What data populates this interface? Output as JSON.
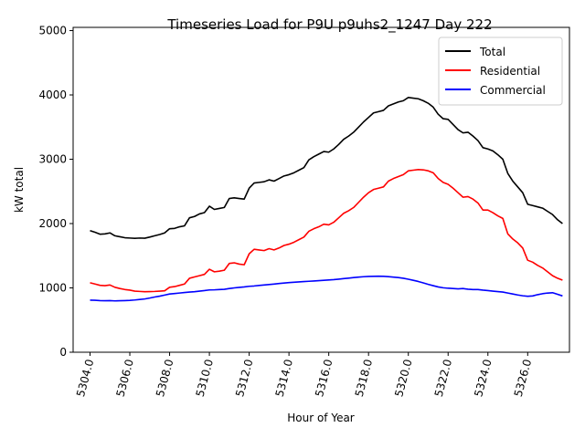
{
  "chart_data": {
    "type": "line",
    "title": "Timeseries Load for P9U p9uhs2_1247  Day 222",
    "xlabel": "Hour of Year",
    "ylabel": "kW total",
    "xlim": [
      5303.15,
      5328.1
    ],
    "ylim": [
      0,
      5050
    ],
    "xticks": [
      5304,
      5306,
      5308,
      5310,
      5312,
      5314,
      5316,
      5318,
      5320,
      5322,
      5324,
      5326
    ],
    "xtick_labels": [
      "5304.0",
      "5306.0",
      "5308.0",
      "5310.0",
      "5312.0",
      "5314.0",
      "5316.0",
      "5318.0",
      "5320.0",
      "5322.0",
      "5324.0",
      "5326.0"
    ],
    "yticks": [
      0,
      1000,
      2000,
      3000,
      4000,
      5000
    ],
    "ytick_labels": [
      "0",
      "1000",
      "2000",
      "3000",
      "4000",
      "5000"
    ],
    "legend_position": "top-right",
    "x_start": 5304.0,
    "x_step": 0.25,
    "series": [
      {
        "name": "Total",
        "color": "#000000",
        "values": [
          1890,
          1865,
          1835,
          1840,
          1855,
          1810,
          1795,
          1780,
          1775,
          1770,
          1775,
          1772,
          1790,
          1810,
          1830,
          1855,
          1920,
          1925,
          1950,
          1965,
          2090,
          2110,
          2150,
          2170,
          2270,
          2220,
          2235,
          2250,
          2390,
          2400,
          2390,
          2380,
          2550,
          2630,
          2640,
          2650,
          2680,
          2660,
          2700,
          2740,
          2760,
          2790,
          2830,
          2870,
          2990,
          3040,
          3080,
          3120,
          3110,
          3160,
          3230,
          3310,
          3360,
          3420,
          3500,
          3580,
          3650,
          3720,
          3740,
          3760,
          3830,
          3860,
          3890,
          3910,
          3960,
          3950,
          3940,
          3910,
          3870,
          3810,
          3700,
          3630,
          3620,
          3540,
          3460,
          3410,
          3420,
          3360,
          3290,
          3180,
          3160,
          3130,
          3070,
          3000,
          2780,
          2660,
          2570,
          2480,
          2300,
          2280,
          2260,
          2240,
          2190,
          2140,
          2060,
          2000
        ]
      },
      {
        "name": "Residential",
        "color": "#ff0000",
        "values": [
          1080,
          1060,
          1040,
          1035,
          1045,
          1010,
          990,
          975,
          965,
          950,
          945,
          940,
          942,
          945,
          950,
          955,
          1010,
          1020,
          1040,
          1060,
          1150,
          1170,
          1190,
          1210,
          1290,
          1250,
          1260,
          1275,
          1380,
          1390,
          1370,
          1360,
          1530,
          1600,
          1590,
          1580,
          1610,
          1590,
          1620,
          1660,
          1680,
          1710,
          1750,
          1790,
          1880,
          1920,
          1950,
          1990,
          1980,
          2020,
          2090,
          2160,
          2200,
          2250,
          2330,
          2410,
          2480,
          2530,
          2550,
          2570,
          2660,
          2700,
          2730,
          2760,
          2820,
          2830,
          2840,
          2835,
          2820,
          2790,
          2700,
          2640,
          2610,
          2550,
          2480,
          2410,
          2420,
          2380,
          2320,
          2210,
          2210,
          2170,
          2120,
          2080,
          1840,
          1760,
          1700,
          1620,
          1430,
          1400,
          1350,
          1310,
          1250,
          1190,
          1150,
          1120
        ]
      },
      {
        "name": "Commercial",
        "color": "#0000ff",
        "values": [
          810,
          808,
          802,
          800,
          802,
          798,
          800,
          803,
          806,
          812,
          820,
          828,
          842,
          858,
          872,
          888,
          905,
          912,
          920,
          928,
          935,
          940,
          950,
          958,
          968,
          970,
          975,
          978,
          990,
          1000,
          1008,
          1015,
          1025,
          1030,
          1038,
          1045,
          1053,
          1060,
          1068,
          1075,
          1082,
          1088,
          1093,
          1098,
          1103,
          1108,
          1113,
          1118,
          1123,
          1128,
          1136,
          1145,
          1152,
          1160,
          1168,
          1174,
          1178,
          1180,
          1182,
          1180,
          1175,
          1168,
          1160,
          1150,
          1135,
          1118,
          1100,
          1078,
          1055,
          1035,
          1015,
          1002,
          995,
          990,
          985,
          990,
          980,
          975,
          975,
          965,
          958,
          950,
          942,
          935,
          920,
          905,
          890,
          878,
          870,
          875,
          895,
          910,
          920,
          925,
          900,
          875
        ]
      }
    ]
  }
}
